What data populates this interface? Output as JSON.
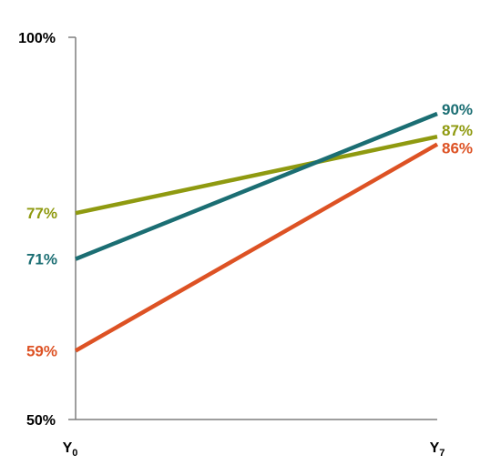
{
  "chart_data": {
    "type": "line",
    "title": "",
    "xlabel": "",
    "ylabel": "",
    "ylim": [
      50,
      100
    ],
    "yticks": [
      "100%",
      "50%"
    ],
    "categories": [
      "Y0",
      "Y7"
    ],
    "category_labels": [
      {
        "base": "Y",
        "sub": "0"
      },
      {
        "base": "Y",
        "sub": "7"
      }
    ],
    "grid": false,
    "legend": "none",
    "series": [
      {
        "color": "#8f9a10",
        "values": [
          77,
          87
        ],
        "labels": [
          "77%",
          "87%"
        ]
      },
      {
        "color": "#1b6e73",
        "values": [
          71,
          90
        ],
        "labels": [
          "71%",
          "90%"
        ]
      },
      {
        "color": "#dd5224",
        "values": [
          59,
          86
        ],
        "labels": [
          "59%",
          "86%"
        ]
      }
    ]
  }
}
